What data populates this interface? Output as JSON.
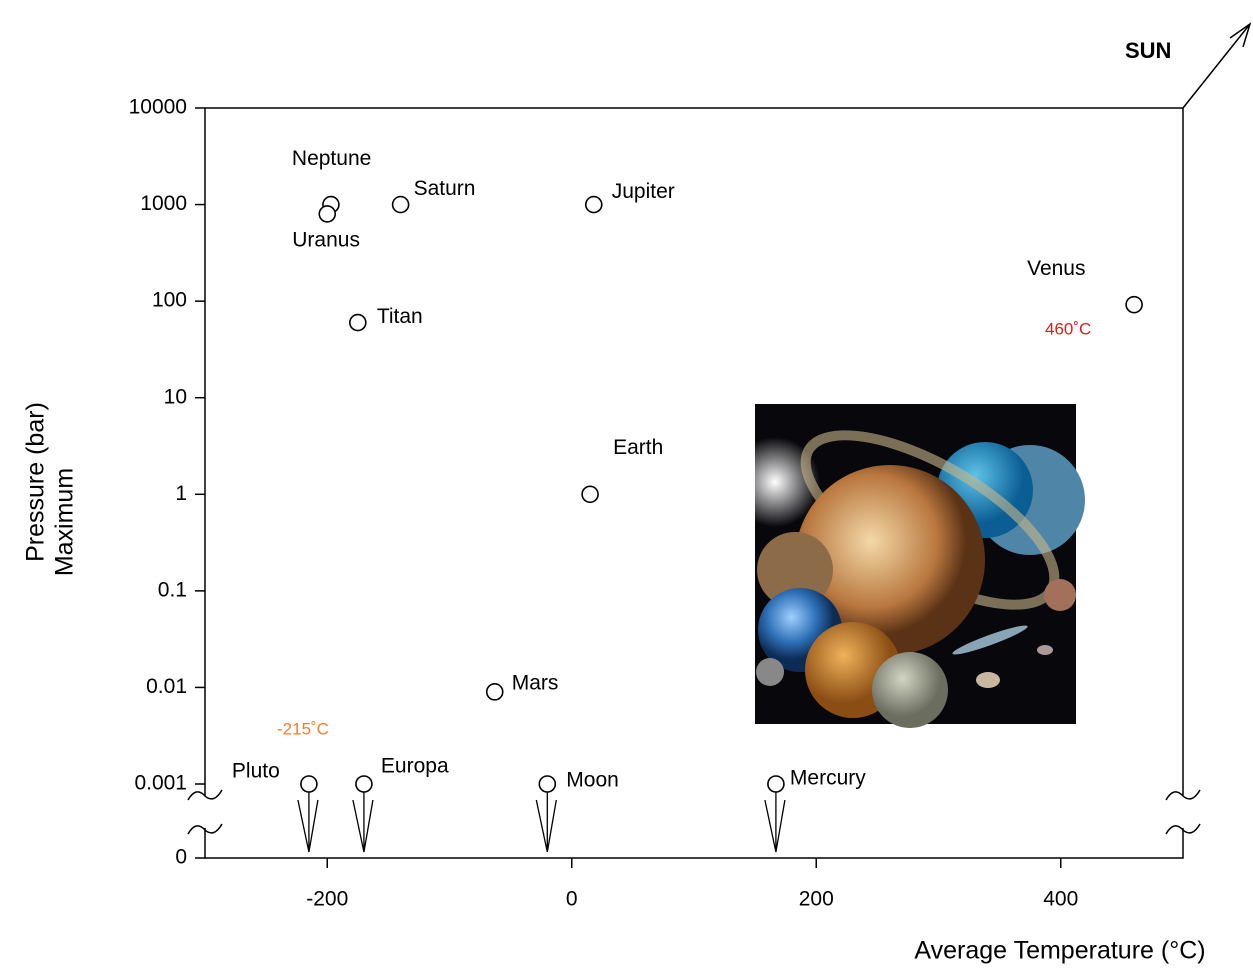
{
  "chart_data": {
    "type": "scatter",
    "x_label": "Average Temperature (°C)",
    "y_label": [
      "Pressure  (bar)",
      "Maximum"
    ],
    "log_y": true,
    "xlim": [
      -300,
      500
    ],
    "xticks": [
      -200,
      0,
      200,
      400
    ],
    "ylim": [
      0.001,
      10000
    ],
    "yticks": [
      10000,
      1000,
      100,
      10,
      1,
      0.1,
      0.01,
      0.001
    ],
    "axis_break_ticks": [
      0
    ],
    "points": [
      {
        "name": "Neptune",
        "x": -197,
        "y": 1000,
        "upper_limit": false
      },
      {
        "name": "Uranus",
        "x": -200,
        "y": 800,
        "upper_limit": false
      },
      {
        "name": "Saturn",
        "x": -140,
        "y": 1000,
        "upper_limit": false
      },
      {
        "name": "Jupiter",
        "x": 18,
        "y": 1000,
        "upper_limit": false
      },
      {
        "name": "Titan",
        "x": -175,
        "y": 60,
        "upper_limit": false
      },
      {
        "name": "Venus",
        "x": 460,
        "y": 92,
        "upper_limit": false
      },
      {
        "name": "Earth",
        "x": 15,
        "y": 1,
        "upper_limit": false
      },
      {
        "name": "Mars",
        "x": -63,
        "y": 0.009,
        "upper_limit": false
      },
      {
        "name": "Pluto",
        "x": -215,
        "y": 0.001,
        "upper_limit": true
      },
      {
        "name": "Europa",
        "x": -170,
        "y": 0.001,
        "upper_limit": true
      },
      {
        "name": "Moon",
        "x": -20,
        "y": 0.001,
        "upper_limit": true
      },
      {
        "name": "Mercury",
        "x": 167,
        "y": 0.001,
        "upper_limit": true
      }
    ],
    "annotations": [
      {
        "text": "460˚C",
        "color": "#e31b1b"
      },
      {
        "text": "-215˚C",
        "color": "#f07f30"
      },
      {
        "text": "SUN",
        "color": "#000000"
      }
    ]
  }
}
